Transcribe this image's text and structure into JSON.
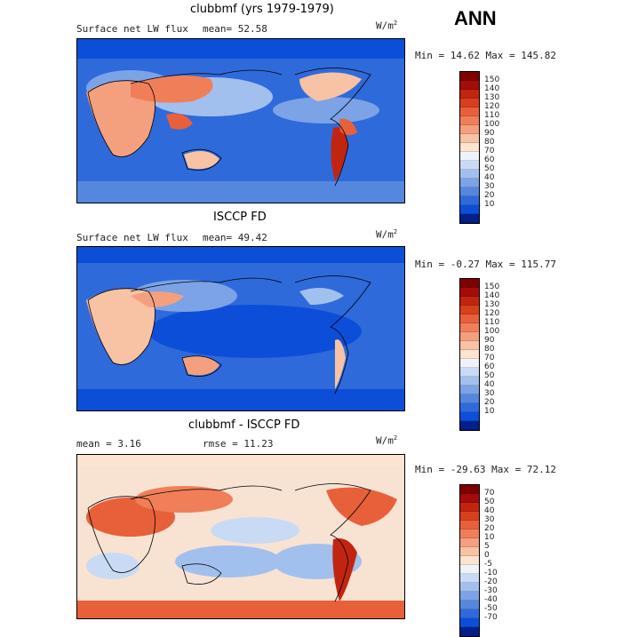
{
  "header": {
    "season": "ANN"
  },
  "panels": [
    {
      "title": "clubbmf (yrs 1979-1979)",
      "sub_left": "Surface net LW flux",
      "sub_mid": "mean=  52.58",
      "units": "W/m",
      "units_exp": "2",
      "minmax": "Min =  14.62 Max = 145.82",
      "colorbar_labels": [
        "150",
        "140",
        "130",
        "120",
        "110",
        "100",
        "90",
        "80",
        "70",
        "60",
        "50",
        "40",
        "30",
        "20",
        "10"
      ],
      "colors": [
        "#7f0000",
        "#a40c0c",
        "#c2250f",
        "#d8401c",
        "#e8603a",
        "#f07f59",
        "#f4a07e",
        "#f8c2a4",
        "#fde4d0",
        "#eef3fb",
        "#c9dbf4",
        "#a2c0ee",
        "#7ba3e6",
        "#5587df",
        "#2f6adb",
        "#0c4ed8",
        "#0432b8",
        "#021f8a"
      ]
    },
    {
      "title": "ISCCP FD",
      "sub_left": "Surface net LW flux",
      "sub_mid": "mean=  49.42",
      "units": "W/m",
      "units_exp": "2",
      "minmax": "Min =  -0.27 Max = 115.77",
      "colorbar_labels": [
        "150",
        "140",
        "130",
        "120",
        "110",
        "100",
        "90",
        "80",
        "70",
        "60",
        "50",
        "40",
        "30",
        "20",
        "10"
      ]
    },
    {
      "title": "clubbmf - ISCCP FD",
      "sub_left": "mean =   3.16",
      "sub_mid": "rmse =  11.23",
      "units": "W/m",
      "units_exp": "2",
      "minmax": "Min = -29.63 Max =  72.12",
      "colorbar_labels": [
        "70",
        "50",
        "40",
        "30",
        "20",
        "10",
        "5",
        "0",
        "-5",
        "-10",
        "-20",
        "-30",
        "-40",
        "-50",
        "-70"
      ]
    }
  ]
}
